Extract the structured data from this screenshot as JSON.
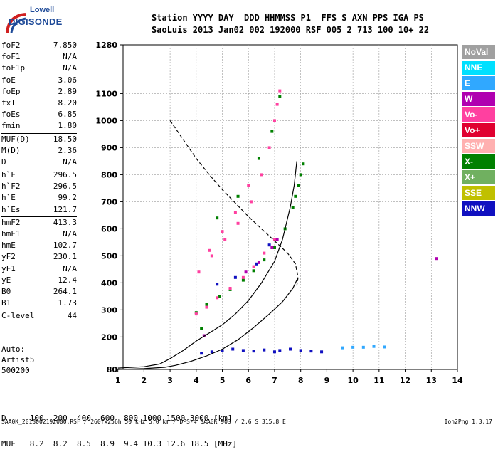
{
  "logo": {
    "line1": "Lowell",
    "line2": "DIGISONDE"
  },
  "header": {
    "line1": "Station YYYY DAY  DDD HHMMSS P1  FFS S AXN PPS IGA PS",
    "line2": "SaoLuis 2013 Jan02 002 192000 RSF 005 2 713 100 10+ 22"
  },
  "params": [
    [
      {
        "name": "foF2",
        "value": "7.850"
      },
      {
        "name": "foF1",
        "value": "N/A"
      },
      {
        "name": "foF1p",
        "value": "N/A"
      },
      {
        "name": "foE",
        "value": "3.06"
      },
      {
        "name": "foEp",
        "value": "2.89"
      },
      {
        "name": "fxI",
        "value": "8.20"
      },
      {
        "name": "foEs",
        "value": "6.85"
      },
      {
        "name": "fmin",
        "value": "1.80"
      }
    ],
    [
      {
        "name": "MUF(D)",
        "value": "18.50"
      },
      {
        "name": "M(D)",
        "value": "2.36"
      },
      {
        "name": "D",
        "value": "N/A"
      }
    ],
    [
      {
        "name": "h`F",
        "value": "296.5"
      },
      {
        "name": "h`F2",
        "value": "296.5"
      },
      {
        "name": "h`E",
        "value": "99.2"
      },
      {
        "name": "h`Es",
        "value": "121.7"
      }
    ],
    [
      {
        "name": "hmF2",
        "value": "413.3"
      },
      {
        "name": "hmF1",
        "value": "N/A"
      },
      {
        "name": "hmE",
        "value": "102.7"
      },
      {
        "name": "yF2",
        "value": "230.1"
      },
      {
        "name": "yF1",
        "value": "N/A"
      },
      {
        "name": "yE",
        "value": "12.4"
      },
      {
        "name": "B0",
        "value": "264.1"
      },
      {
        "name": "B1",
        "value": "1.73"
      }
    ],
    [
      {
        "name": "C-level",
        "value": "44"
      }
    ]
  ],
  "auto": {
    "line1": "Auto:",
    "line2": "Artist5",
    "line3": "500200"
  },
  "legend": [
    {
      "label": "NoVal",
      "color": "#a0a0a0"
    },
    {
      "label": "NNE",
      "color": "#00e0ff"
    },
    {
      "label": "E",
      "color": "#30a8ff"
    },
    {
      "label": "W",
      "color": "#b000b0"
    },
    {
      "label": "Vo-",
      "color": "#ff40a0"
    },
    {
      "label": "Vo+",
      "color": "#e00030"
    },
    {
      "label": "SSW",
      "color": "#ffb0b0"
    },
    {
      "label": "X-",
      "color": "#008000"
    },
    {
      "label": "X+",
      "color": "#70b060"
    },
    {
      "label": "SSE",
      "color": "#c0c000"
    },
    {
      "label": "NNW",
      "color": "#1010c0"
    }
  ],
  "muf_table": {
    "line1": "D     100  200  400  600  800 1000 1500 3000 [km]",
    "line2": "MUF   8.2  8.2  8.5  8.9  9.4 10.3 12.6 18.5 [MHz]"
  },
  "footer": "SAA0K_2013002192000.RSF / 260fx256h 50 kHz 5.0 km / DPS-4 SAA0K 903 / 2.6 S 315.8 E",
  "version": "Ion2Png 1.3.17",
  "chart_data": {
    "type": "scatter",
    "title": "",
    "xlabel": "",
    "ylabel": "",
    "xlim": [
      1,
      14
    ],
    "ylim": [
      80,
      1280
    ],
    "x_ticks": [
      1,
      2,
      3,
      4,
      5,
      6,
      7,
      8,
      9,
      10,
      11,
      12,
      13,
      14
    ],
    "y_ticks": [
      80,
      200,
      300,
      400,
      500,
      600,
      700,
      800,
      900,
      1000,
      1100,
      1280
    ],
    "grid": true,
    "series": [
      {
        "name": "X-",
        "kind": "points",
        "color": "#008000",
        "x": [
          4.0,
          4.4,
          4.9,
          5.3,
          5.8,
          6.2,
          6.6,
          7.0,
          7.4,
          7.7,
          7.8,
          7.9,
          8.0,
          8.1,
          4.2,
          4.8,
          5.6,
          6.4,
          6.9,
          7.2
        ],
        "y": [
          290,
          320,
          350,
          375,
          410,
          445,
          485,
          530,
          600,
          680,
          720,
          760,
          800,
          840,
          230,
          640,
          720,
          860,
          960,
          1090
        ]
      },
      {
        "name": "Vo-",
        "kind": "points",
        "color": "#ff40a0",
        "x": [
          4.0,
          4.4,
          4.8,
          5.3,
          5.8,
          6.2,
          6.6,
          7.0,
          4.1,
          4.6,
          5.1,
          5.6,
          6.1,
          6.5,
          6.8,
          7.0,
          7.1,
          7.2,
          4.5,
          5.0,
          5.5,
          6.0
        ],
        "y": [
          285,
          310,
          345,
          380,
          420,
          460,
          510,
          560,
          440,
          500,
          560,
          620,
          700,
          800,
          900,
          1000,
          1060,
          1110,
          520,
          590,
          660,
          760
        ]
      },
      {
        "name": "NNW",
        "kind": "points",
        "color": "#1010c0",
        "x": [
          4.2,
          4.6,
          5.0,
          5.4,
          5.8,
          6.2,
          6.6,
          7.0,
          7.2,
          7.6,
          8.0,
          8.4,
          8.8,
          4.8,
          5.5,
          6.3,
          6.8
        ],
        "y": [
          140,
          145,
          150,
          155,
          150,
          148,
          152,
          145,
          150,
          155,
          150,
          148,
          145,
          395,
          420,
          470,
          540
        ]
      },
      {
        "name": "E",
        "kind": "points",
        "color": "#30a8ff",
        "x": [
          10.0,
          10.4,
          10.8,
          11.2,
          9.6
        ],
        "y": [
          162,
          162,
          165,
          163,
          160
        ]
      },
      {
        "name": "W",
        "kind": "points",
        "color": "#b000b0",
        "x": [
          5.9,
          6.4,
          6.9,
          7.1,
          13.2,
          4.3
        ],
        "y": [
          440,
          475,
          530,
          560,
          490,
          205
        ]
      },
      {
        "name": "",
        "kind": "line",
        "style": "solid",
        "color": "#000000",
        "x": [
          1.0,
          2.0,
          2.6,
          3.0,
          3.5,
          4.0,
          4.5,
          5.0,
          5.5,
          6.0,
          6.5,
          7.0,
          7.3,
          7.6,
          7.75,
          7.85
        ],
        "y": [
          85,
          90,
          100,
          120,
          150,
          185,
          215,
          245,
          285,
          335,
          400,
          480,
          560,
          680,
          760,
          850
        ]
      },
      {
        "name": "",
        "kind": "line",
        "style": "dashed",
        "color": "#000000",
        "x": [
          3.0,
          3.5,
          4.0,
          4.5,
          5.0,
          5.5,
          6.0,
          6.5,
          7.0,
          7.5,
          7.8,
          7.9,
          7.85
        ],
        "y": [
          1000,
          930,
          860,
          800,
          745,
          695,
          645,
          600,
          555,
          510,
          470,
          420,
          390
        ]
      },
      {
        "name": "",
        "kind": "line",
        "style": "solid",
        "color": "#000000",
        "x": [
          1.0,
          2.0,
          2.8,
          3.2,
          3.8,
          4.4,
          5.0,
          5.6,
          6.2,
          6.8,
          7.3,
          7.7,
          7.9
        ],
        "y": [
          80,
          83,
          88,
          95,
          110,
          130,
          155,
          190,
          235,
          285,
          330,
          380,
          420
        ]
      }
    ]
  }
}
